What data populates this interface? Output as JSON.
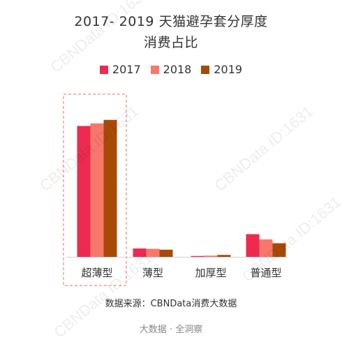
{
  "chart_data": {
    "type": "bar",
    "title": "2017- 2019 天猫避孕套分厚度",
    "subtitle": "消费占比",
    "categories": [
      "超薄型",
      "薄型",
      "加厚型",
      "普通型"
    ],
    "series": [
      {
        "name": "2017",
        "color": "#ee2a50",
        "values": [
          75.0,
          4.8,
          0.5,
          13.0
        ]
      },
      {
        "name": "2018",
        "color": "#f7786a",
        "values": [
          76.5,
          4.6,
          0.7,
          10.0
        ]
      },
      {
        "name": "2019",
        "color": "#a84a05",
        "values": [
          78.5,
          4.1,
          1.1,
          7.8
        ]
      }
    ],
    "ylim": [
      0,
      100
    ],
    "grid": false,
    "legend_position": "top",
    "highlight_category": "超薄型"
  },
  "source_text": "数据来源：CBNData消费大数据",
  "footer_text": "大数据 · 全洞察",
  "watermark_text": "CBNData ID:1631"
}
